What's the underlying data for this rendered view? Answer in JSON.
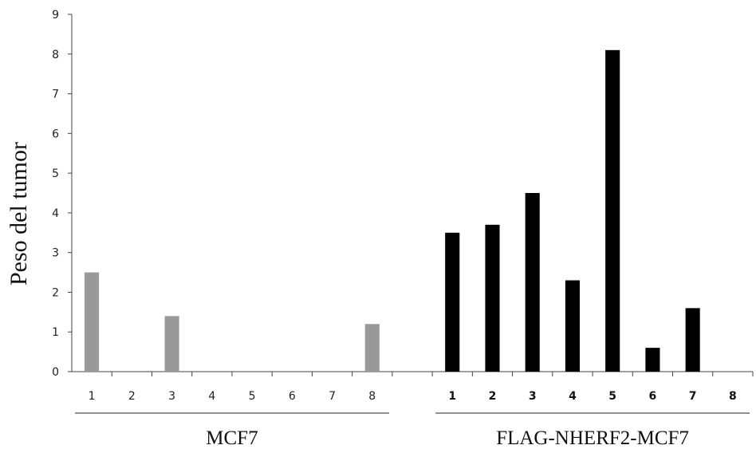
{
  "chart_data": {
    "type": "bar",
    "ylabel": "Peso del tumor",
    "ylim": [
      0,
      9
    ],
    "yticks": [
      "0",
      "1",
      "2",
      "3",
      "4",
      "5",
      "6",
      "7",
      "8",
      "9"
    ],
    "grid": false,
    "groups": [
      {
        "name": "MCF7",
        "color": "#999999",
        "categories": [
          "1",
          "2",
          "3",
          "4",
          "5",
          "6",
          "7",
          "8"
        ],
        "values": [
          2.5,
          0,
          1.4,
          0,
          0,
          0,
          0,
          1.2
        ]
      },
      {
        "name": "FLAG-NHERF2-MCF7",
        "color": "#000000",
        "categories": [
          "1",
          "2",
          "3",
          "4",
          "5",
          "6",
          "7",
          "8"
        ],
        "values": [
          3.5,
          3.7,
          4.5,
          2.3,
          8.1,
          0.6,
          1.6,
          0
        ]
      }
    ]
  }
}
